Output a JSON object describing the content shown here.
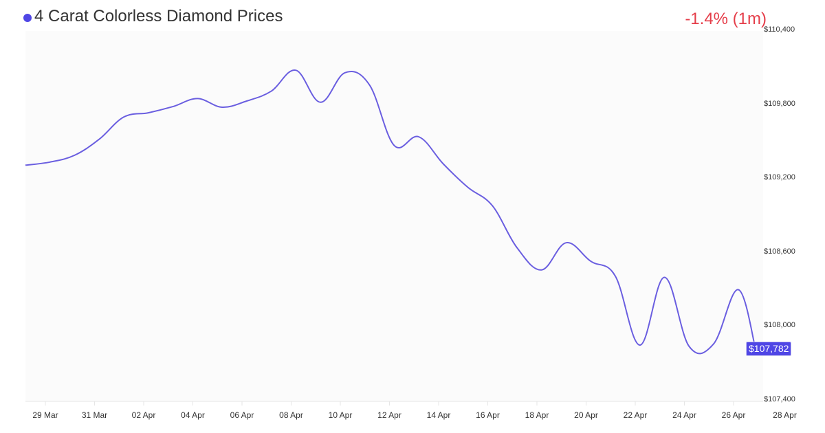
{
  "header": {
    "title": "4 Carat Colorless Diamond Prices",
    "change": "-1.4% (1m)",
    "accent_color": "#4f46e5",
    "change_color": "#e53e4a"
  },
  "y_axis": {
    "ticks": [
      "$110,400",
      "$109,800",
      "$109,200",
      "$108,600",
      "$108,000",
      "$107,400"
    ]
  },
  "x_axis": {
    "ticks": [
      "29 Mar",
      "31 Mar",
      "02 Apr",
      "04 Apr",
      "06 Apr",
      "08 Apr",
      "10 Apr",
      "12 Apr",
      "14 Apr",
      "16 Apr",
      "18 Apr",
      "20 Apr",
      "22 Apr",
      "24 Apr",
      "26 Apr",
      "28 Apr"
    ]
  },
  "last_value_label": "$107,782",
  "chart_data": {
    "type": "line",
    "title": "4 Carat Colorless Diamond Prices",
    "subtitle": "-1.4% (1m)",
    "xlabel": "",
    "ylabel": "",
    "ylim": [
      107400,
      110400
    ],
    "grid": false,
    "legend": "none",
    "x": [
      "28 Mar",
      "29 Mar",
      "30 Mar",
      "31 Mar",
      "01 Apr",
      "02 Apr",
      "03 Apr",
      "04 Apr",
      "05 Apr",
      "06 Apr",
      "07 Apr",
      "08 Apr",
      "09 Apr",
      "10 Apr",
      "11 Apr",
      "12 Apr",
      "13 Apr",
      "14 Apr",
      "15 Apr",
      "16 Apr",
      "17 Apr",
      "18 Apr",
      "19 Apr",
      "20 Apr",
      "21 Apr",
      "22 Apr",
      "23 Apr",
      "24 Apr",
      "25 Apr",
      "26 Apr",
      "27 Apr"
    ],
    "series": [
      {
        "name": "4 Carat Colorless Diamond Price (USD)",
        "color": "#6a5ee0",
        "values": [
          109300,
          109325,
          109380,
          109510,
          109690,
          109725,
          109775,
          109840,
          109770,
          109820,
          109900,
          110070,
          109810,
          110050,
          109950,
          109460,
          109530,
          109310,
          109120,
          108970,
          108630,
          108450,
          108670,
          108520,
          108400,
          107840,
          108390,
          107830,
          107850,
          108290,
          107782
        ]
      }
    ],
    "y_ticks": [
      110400,
      109800,
      109200,
      108600,
      108000,
      107400
    ],
    "x_ticks": [
      "29 Mar",
      "31 Mar",
      "02 Apr",
      "04 Apr",
      "06 Apr",
      "08 Apr",
      "10 Apr",
      "12 Apr",
      "14 Apr",
      "16 Apr",
      "18 Apr",
      "20 Apr",
      "22 Apr",
      "24 Apr",
      "26 Apr",
      "28 Apr"
    ],
    "last_value": 107782
  }
}
